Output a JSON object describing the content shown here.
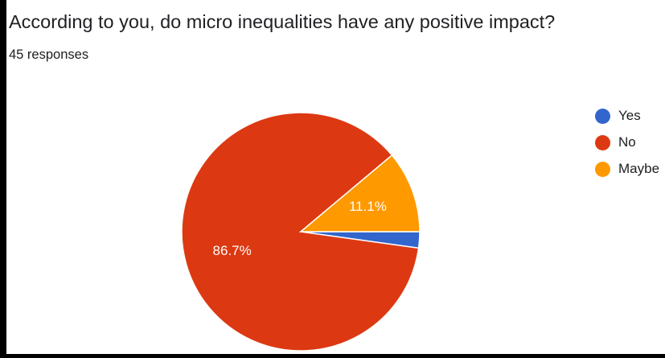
{
  "question": "According to you, do micro inequalities have any positive impact?",
  "responses_label": "45 responses",
  "chart_data": {
    "type": "pie",
    "categories": [
      "Yes",
      "No",
      "Maybe"
    ],
    "values": [
      2.2,
      86.7,
      11.1
    ],
    "data_labels": [
      "",
      "86.7%",
      "11.1%"
    ],
    "colors": [
      "#3366cc",
      "#dc3912",
      "#ff9900"
    ],
    "start_angle_deg": 0,
    "direction": "clockwise",
    "legend_position": "right"
  }
}
